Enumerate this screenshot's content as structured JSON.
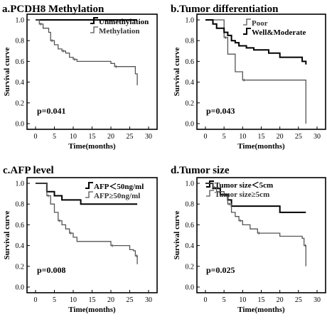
{
  "chart_data": [
    {
      "type": "line",
      "title": "a.PCDH8 Methylation",
      "xlabel": "Time(months)",
      "ylabel": "Survival curve",
      "xlim": [
        0,
        30
      ],
      "ylim": [
        0,
        1
      ],
      "xticks": [
        "0",
        "5",
        "10",
        "15",
        "20",
        "25",
        "30"
      ],
      "yticks": [
        "0.0",
        "0.2",
        "0.4",
        "0.6",
        "0.8",
        "1.0"
      ],
      "annotation": "p=0.041",
      "legend_position": "top-right",
      "series": [
        {
          "name": "Unmethylation",
          "color": "#000000",
          "x": [
            0,
            27
          ],
          "y": [
            1.0,
            1.0
          ]
        },
        {
          "name": "Methylation",
          "color": "#555555",
          "x": [
            0,
            1,
            2,
            3.5,
            4,
            5,
            6,
            7,
            8,
            9,
            10,
            11,
            20,
            21,
            26.5,
            27
          ],
          "y": [
            1.0,
            0.96,
            0.92,
            0.88,
            0.8,
            0.76,
            0.72,
            0.7,
            0.68,
            0.64,
            0.62,
            0.6,
            0.58,
            0.55,
            0.48,
            0.37
          ]
        }
      ]
    },
    {
      "type": "line",
      "title": "b.Tumor differentiation",
      "xlabel": "Time(months)",
      "ylabel": "Survival curve",
      "xlim": [
        0,
        30
      ],
      "ylim": [
        0,
        1
      ],
      "xticks": [
        "0",
        "5",
        "10",
        "15",
        "20",
        "25",
        "30"
      ],
      "yticks": [
        "0.0",
        "0.2",
        "0.4",
        "0.6",
        "0.8",
        "1.0"
      ],
      "annotation": "p=0.043",
      "legend_position": "top-right",
      "series": [
        {
          "name": "Poor",
          "color": "#555555",
          "x": [
            0,
            5,
            6,
            8,
            10,
            27,
            27
          ],
          "y": [
            1.0,
            0.83,
            0.67,
            0.5,
            0.42,
            0.42,
            0.0
          ]
        },
        {
          "name": "Well&Moderate",
          "color": "#000000",
          "x": [
            0,
            2,
            3,
            5,
            6,
            7,
            8,
            9,
            11,
            13,
            17,
            20,
            26,
            27
          ],
          "y": [
            1.0,
            0.96,
            0.92,
            0.88,
            0.85,
            0.8,
            0.78,
            0.75,
            0.73,
            0.71,
            0.68,
            0.64,
            0.6,
            0.57
          ]
        }
      ]
    },
    {
      "type": "line",
      "title": "c.AFP level",
      "xlabel": "Time(months)",
      "ylabel": "Survival curve",
      "xlim": [
        0,
        30
      ],
      "ylim": [
        0,
        1
      ],
      "xticks": [
        "0",
        "5",
        "10",
        "15",
        "20",
        "25",
        "30"
      ],
      "yticks": [
        "0.0",
        "0.2",
        "0.4",
        "0.6",
        "0.8",
        "1.0"
      ],
      "annotation": "p=0.008",
      "legend_position": "top-right",
      "series": [
        {
          "name": "AFP＜50ng/ml",
          "color": "#000000",
          "x": [
            0,
            3,
            5,
            7,
            12,
            27
          ],
          "y": [
            1.0,
            0.92,
            0.88,
            0.84,
            0.8,
            0.8
          ]
        },
        {
          "name": "AFP≥50ng/ml",
          "color": "#555555",
          "x": [
            0,
            3,
            4,
            5,
            6,
            7,
            8,
            9,
            10,
            11,
            20,
            25,
            26,
            26.5,
            27
          ],
          "y": [
            1.0,
            0.88,
            0.8,
            0.72,
            0.64,
            0.6,
            0.56,
            0.52,
            0.48,
            0.44,
            0.4,
            0.36,
            0.35,
            0.3,
            0.22
          ]
        }
      ]
    },
    {
      "type": "line",
      "title": "d.Tumor size",
      "xlabel": "Time(months)",
      "ylabel": "Survival curve",
      "xlim": [
        0,
        30
      ],
      "ylim": [
        0,
        1
      ],
      "xticks": [
        "0",
        "5",
        "10",
        "15",
        "20",
        "25",
        "30"
      ],
      "yticks": [
        "0.0",
        "0.2",
        "0.4",
        "0.6",
        "0.8",
        "1.0"
      ],
      "annotation": "p=0.025",
      "legend_position": "top-right",
      "series": [
        {
          "name": "Tumor size＜5cm",
          "color": "#000000",
          "x": [
            0,
            2,
            4,
            6,
            7,
            20,
            27
          ],
          "y": [
            1.0,
            0.95,
            0.89,
            0.84,
            0.78,
            0.72,
            0.72
          ]
        },
        {
          "name": "Tumor size≥5cm",
          "color": "#555555",
          "x": [
            0,
            2,
            3,
            5,
            6,
            7,
            8,
            9,
            10,
            12,
            14,
            20,
            26,
            26.5,
            27
          ],
          "y": [
            1.0,
            0.96,
            0.92,
            0.88,
            0.8,
            0.72,
            0.68,
            0.64,
            0.6,
            0.56,
            0.52,
            0.49,
            0.47,
            0.4,
            0.2
          ]
        }
      ]
    }
  ]
}
